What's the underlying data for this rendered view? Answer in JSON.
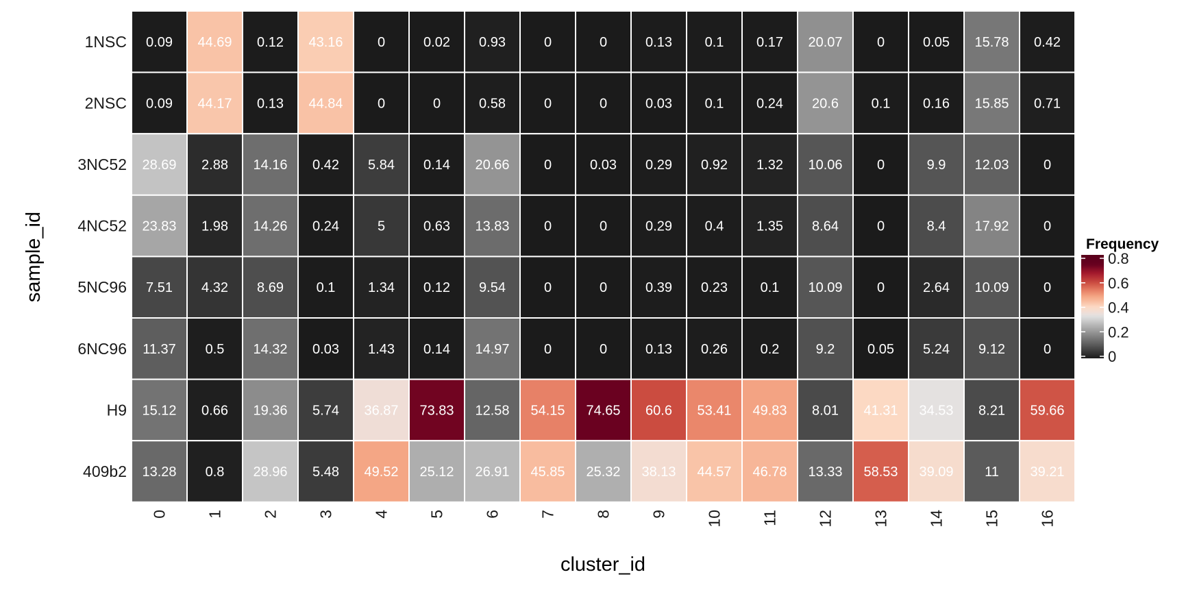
{
  "chart_data": {
    "type": "heatmap",
    "xlabel": "cluster_id",
    "ylabel": "sample_id",
    "x_categories": [
      "0",
      "1",
      "2",
      "3",
      "4",
      "5",
      "6",
      "7",
      "8",
      "9",
      "10",
      "11",
      "12",
      "13",
      "14",
      "15",
      "16"
    ],
    "y_categories": [
      "1NSC",
      "2NSC",
      "3NC52",
      "4NC52",
      "5NC96",
      "6NC96",
      "H9",
      "409b2"
    ],
    "values": [
      [
        0.09,
        44.69,
        0.12,
        43.16,
        0,
        0.02,
        0.93,
        0,
        0,
        0.13,
        0.1,
        0.17,
        20.07,
        0,
        0.05,
        15.78,
        0.42
      ],
      [
        0.09,
        44.17,
        0.13,
        44.84,
        0,
        0,
        0.58,
        0,
        0,
        0.03,
        0.1,
        0.24,
        20.6,
        0.1,
        0.16,
        15.85,
        0.71
      ],
      [
        28.69,
        2.88,
        14.16,
        0.42,
        5.84,
        0.14,
        20.66,
        0,
        0.03,
        0.29,
        0.92,
        1.32,
        10.06,
        0,
        9.9,
        12.03,
        0
      ],
      [
        23.83,
        1.98,
        14.26,
        0.24,
        5,
        0.63,
        13.83,
        0,
        0,
        0.29,
        0.4,
        1.35,
        8.64,
        0,
        8.4,
        17.92,
        0
      ],
      [
        7.51,
        4.32,
        8.69,
        0.1,
        1.34,
        0.12,
        9.54,
        0,
        0,
        0.39,
        0.23,
        0.1,
        10.09,
        0,
        2.64,
        10.09,
        0
      ],
      [
        11.37,
        0.5,
        14.32,
        0.03,
        1.43,
        0.14,
        14.97,
        0,
        0,
        0.13,
        0.26,
        0.2,
        9.2,
        0.05,
        5.24,
        9.12,
        0
      ],
      [
        15.12,
        0.66,
        19.36,
        5.74,
        36.87,
        73.83,
        12.58,
        54.15,
        74.65,
        60.6,
        53.41,
        49.83,
        8.01,
        41.31,
        34.53,
        8.21,
        59.66
      ],
      [
        13.28,
        0.8,
        28.96,
        5.48,
        49.52,
        25.12,
        26.91,
        45.85,
        25.32,
        38.13,
        44.57,
        46.78,
        13.33,
        58.53,
        39.09,
        11,
        39.21
      ]
    ],
    "legend": {
      "title": "Frequency",
      "ticks": [
        0,
        0.2,
        0.4,
        0.6,
        0.8
      ],
      "tick_labels": [
        "0",
        "0.2",
        "0.4",
        "0.6",
        "0.8"
      ],
      "placement": "right"
    },
    "colorscale": [
      [
        0,
        "#1b1b1b"
      ],
      [
        0.34,
        "#e2e2e2"
      ],
      [
        0.37,
        "#f0ddd5"
      ],
      [
        0.41,
        "#fcdbc6"
      ],
      [
        0.445,
        "#f9c4a8"
      ],
      [
        0.495,
        "#f4a685"
      ],
      [
        0.534,
        "#ea876b"
      ],
      [
        0.585,
        "#d55e4d"
      ],
      [
        0.606,
        "#cb4c40"
      ],
      [
        0.68,
        "#a51a2d"
      ],
      [
        0.75,
        "#67001f"
      ],
      [
        0.85,
        "#55001a"
      ]
    ],
    "cell_text_color": "#ffffff",
    "cell_border_color": "#ffffff"
  }
}
